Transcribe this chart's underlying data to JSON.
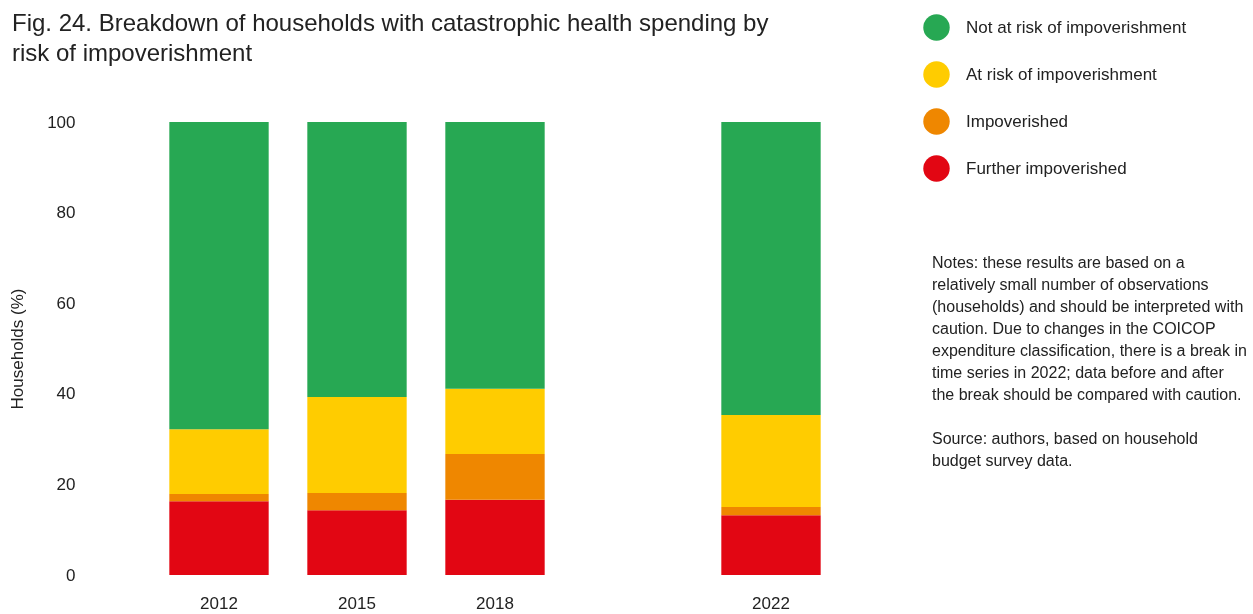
{
  "chart_data": {
    "type": "bar",
    "stacked": true,
    "title": "Fig. 24. Breakdown of households with catastrophic health spending by risk of impoverishment",
    "ylabel": "Households (%)",
    "categories": [
      "2012",
      "2015",
      "2018",
      null,
      "2022"
    ],
    "series": [
      {
        "name": "Further impoverished",
        "color": "#e20613",
        "values": [
          16.3,
          14.3,
          16.6,
          null,
          13.2
        ]
      },
      {
        "name": "Impoverished",
        "color": "#ef8700",
        "values": [
          1.6,
          3.8,
          10.1,
          null,
          1.8
        ]
      },
      {
        "name": "At risk of impoverishment",
        "color": "#ffcc00",
        "values": [
          14.3,
          21.2,
          14.4,
          null,
          20.3
        ]
      },
      {
        "name": "Not at risk of impoverishment",
        "color": "#27a853",
        "values": [
          67.8,
          60.7,
          58.9,
          null,
          64.7
        ]
      }
    ],
    "ylim": [
      0,
      100
    ],
    "yticks": [
      0,
      20,
      40,
      60,
      80,
      100
    ],
    "grid": false,
    "legend": "right",
    "annotations": [
      "Notes: these results are based on a relatively small number of observations (households) and should be interpreted with caution. Due to changes in the COICOP expenditure classification, there is a break in time series in 2022; data before and after the break should be compared with caution.",
      "Source: authors, based on household budget survey data."
    ]
  }
}
